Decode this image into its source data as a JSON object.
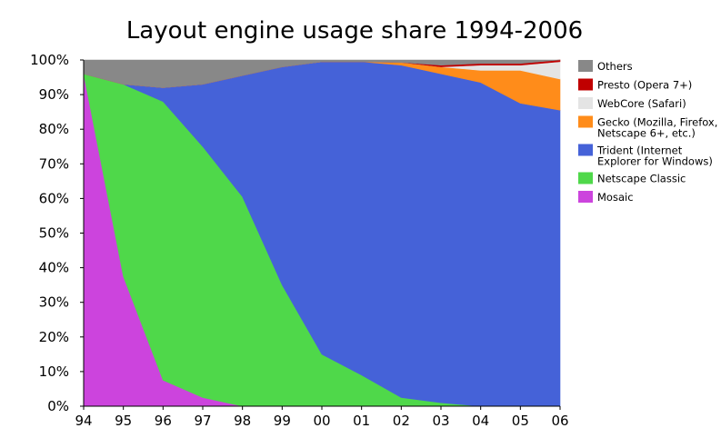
{
  "chart_data": {
    "type": "area",
    "stacked": true,
    "normalized_to_100": true,
    "title": "Layout engine usage share 1994-2006",
    "xlabel": "",
    "ylabel": "",
    "x": [
      "94",
      "95",
      "96",
      "97",
      "98",
      "99",
      "00",
      "01",
      "02",
      "03",
      "04",
      "05",
      "06"
    ],
    "ylim": [
      0,
      100
    ],
    "yticks": [
      "0%",
      "10%",
      "20%",
      "30%",
      "40%",
      "50%",
      "60%",
      "70%",
      "80%",
      "90%",
      "100%"
    ],
    "grid": false,
    "legend_position": "right",
    "series": [
      {
        "name": "Mosaic",
        "color": "#cc44dd",
        "values": [
          96,
          37.5,
          7.5,
          2.5,
          0,
          0,
          0,
          0,
          0,
          0,
          0,
          0,
          0
        ]
      },
      {
        "name": "Netscape Classic",
        "color": "#4fd84a",
        "values": [
          0,
          55.5,
          80.5,
          72.5,
          60.5,
          35,
          15,
          9,
          2.5,
          1,
          0,
          0,
          0
        ]
      },
      {
        "name": "Trident (Internet Explorer for Windows)",
        "color": "#4562d8",
        "values": [
          0,
          0,
          4,
          18,
          35,
          63,
          84.5,
          90.5,
          96,
          95,
          93.5,
          87.5,
          85.5
        ]
      },
      {
        "name": "Gecko (Mozilla, Firefox, Netscape 6+, etc.)",
        "color": "#ff8c1a",
        "values": [
          0,
          0,
          0,
          0,
          0,
          0,
          0,
          0,
          0.8,
          2,
          3.5,
          9.5,
          9
        ]
      },
      {
        "name": "WebCore (Safari)",
        "color": "#e4e4e4",
        "values": [
          0,
          0,
          0,
          0,
          0,
          0,
          0,
          0,
          0,
          0,
          1.5,
          1.5,
          5
        ]
      },
      {
        "name": "Presto (Opera 7+)",
        "color": "#c00000",
        "values": [
          0,
          0,
          0,
          0,
          0,
          0,
          0,
          0,
          0,
          0.5,
          0.5,
          0.5,
          0.5
        ]
      },
      {
        "name": "Others",
        "color": "#888888",
        "values": [
          4,
          7,
          8,
          7,
          4.5,
          2,
          0.5,
          0.5,
          0.7,
          1.5,
          1,
          1,
          0
        ]
      }
    ],
    "legend": [
      {
        "series": "Others",
        "lines": [
          "Others"
        ]
      },
      {
        "series": "Presto (Opera 7+)",
        "lines": [
          "Presto (Opera 7+)"
        ]
      },
      {
        "series": "WebCore (Safari)",
        "lines": [
          "WebCore (Safari)"
        ]
      },
      {
        "series": "Gecko (Mozilla, Firefox, Netscape 6+, etc.)",
        "lines": [
          "Gecko (Mozilla, Firefox,",
          "Netscape 6+, etc.)"
        ]
      },
      {
        "series": "Trident (Internet Explorer for Windows)",
        "lines": [
          "Trident (Internet",
          "Explorer for Windows)"
        ]
      },
      {
        "series": "Netscape Classic",
        "lines": [
          "Netscape Classic"
        ]
      },
      {
        "series": "Mosaic",
        "lines": [
          "Mosaic"
        ]
      }
    ]
  }
}
